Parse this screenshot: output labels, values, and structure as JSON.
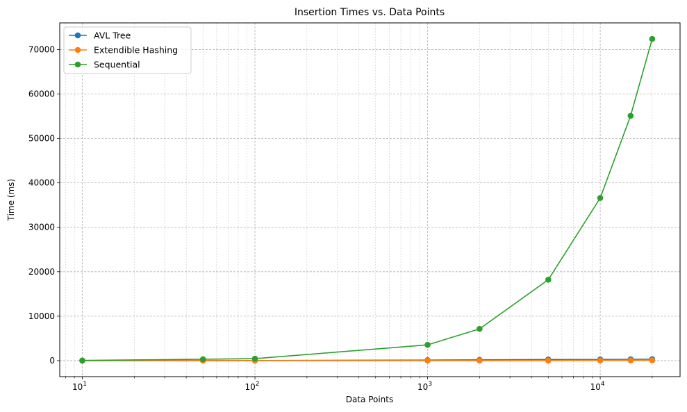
{
  "chart_data": {
    "type": "line",
    "title": "Insertion Times vs. Data Points",
    "xlabel": "Data Points",
    "ylabel": "Time (ms)",
    "xscale": "log",
    "xlim": [
      7.4,
      29000
    ],
    "ylim": [
      -3600,
      76000
    ],
    "x": [
      10,
      50,
      100,
      1000,
      2000,
      5000,
      10000,
      15000,
      20000
    ],
    "x_ticks": [
      {
        "value": 10,
        "base": "10",
        "exp": "1"
      },
      {
        "value": 100,
        "base": "10",
        "exp": "2"
      },
      {
        "value": 1000,
        "base": "10",
        "exp": "3"
      },
      {
        "value": 10000,
        "base": "10",
        "exp": "4"
      }
    ],
    "y_ticks": [
      0,
      10000,
      20000,
      30000,
      40000,
      50000,
      60000,
      70000
    ],
    "grid": true,
    "legend_position": "top-left",
    "series": [
      {
        "name": "AVL Tree",
        "color": "#1f77b4",
        "values": [
          2,
          10,
          20,
          120,
          180,
          250,
          260,
          300,
          330
        ]
      },
      {
        "name": "Extendible Hashing",
        "color": "#ff7f0e",
        "values": [
          1,
          5,
          8,
          10,
          12,
          20,
          50,
          60,
          70
        ]
      },
      {
        "name": "Sequential",
        "color": "#2ca02c",
        "values": [
          30,
          320,
          450,
          3550,
          7150,
          18200,
          36600,
          55100,
          72400
        ]
      }
    ]
  }
}
